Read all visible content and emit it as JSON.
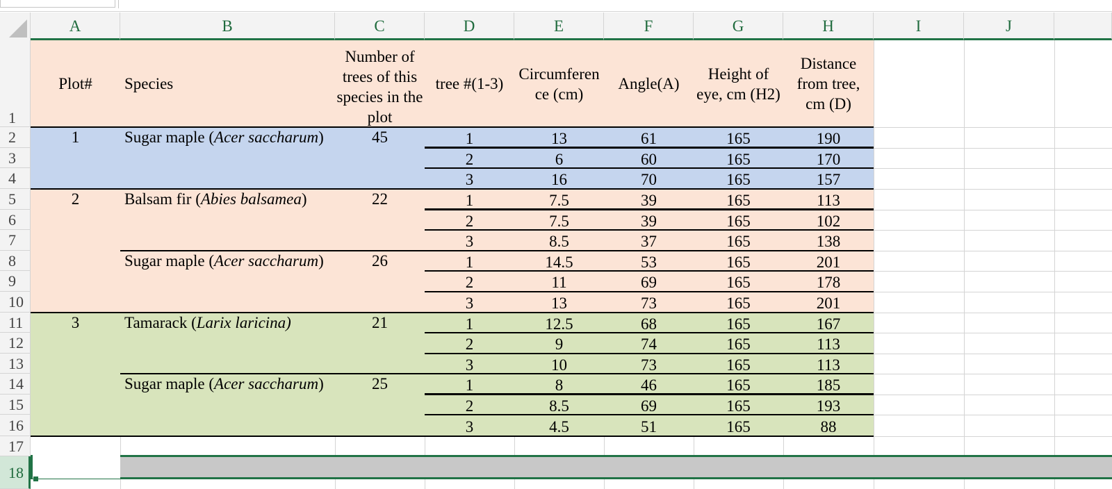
{
  "columns": [
    "A",
    "B",
    "C",
    "D",
    "E",
    "F",
    "G",
    "H",
    "I",
    "J"
  ],
  "rows": [
    "1",
    "2",
    "3",
    "4",
    "5",
    "6",
    "7",
    "8",
    "9",
    "10",
    "11",
    "12",
    "13",
    "14",
    "15",
    "16",
    "17",
    "18"
  ],
  "colors": {
    "peach": "#fce4d6",
    "blue": "#c5d5ee",
    "green": "#d8e4bc",
    "excel_green": "#217346"
  },
  "header": {
    "plot": "Plot#",
    "species": "Species",
    "number_of_trees": "Number of trees of this species in the plot",
    "tree_no": "tree #(1-3)",
    "circumference": "Circumferen ce (cm)",
    "angle": "Angle(A)",
    "height_eye": "Height of eye, cm (H2)",
    "distance": "Distance from tree, cm (D)"
  },
  "groups": [
    {
      "plot": "1",
      "common": "Sugar maple (",
      "latin": "Acer saccharum",
      "close": ")",
      "count": "45"
    },
    {
      "plot": "2",
      "common": "Balsam fir (",
      "latin": "Abies balsamea",
      "close": ")",
      "count": "22"
    },
    {
      "plot": "",
      "common": "Sugar maple (",
      "latin": "Acer saccharum",
      "close": ")",
      "count": "26"
    },
    {
      "plot": "3",
      "common": "Tamarack (",
      "latin": "Larix laricina)",
      "close": "",
      "count": "21"
    },
    {
      "plot": "",
      "common": "Sugar maple (",
      "latin": "Acer saccharum",
      "close": ")",
      "count": "25"
    }
  ],
  "data_rows": [
    [
      "1",
      "13",
      "61",
      "165",
      "190"
    ],
    [
      "2",
      "6",
      "60",
      "165",
      "170"
    ],
    [
      "3",
      "16",
      "70",
      "165",
      "157"
    ],
    [
      "1",
      "7.5",
      "39",
      "165",
      "113"
    ],
    [
      "2",
      "7.5",
      "39",
      "165",
      "102"
    ],
    [
      "3",
      "8.5",
      "37",
      "165",
      "138"
    ],
    [
      "1",
      "14.5",
      "53",
      "165",
      "201"
    ],
    [
      "2",
      "11",
      "69",
      "165",
      "178"
    ],
    [
      "3",
      "13",
      "73",
      "165",
      "201"
    ],
    [
      "1",
      "12.5",
      "68",
      "165",
      "167"
    ],
    [
      "2",
      "9",
      "74",
      "165",
      "113"
    ],
    [
      "3",
      "10",
      "73",
      "165",
      "113"
    ],
    [
      "1",
      "8",
      "46",
      "165",
      "185"
    ],
    [
      "2",
      "8.5",
      "69",
      "165",
      "193"
    ],
    [
      "3",
      "4.5",
      "51",
      "165",
      "88"
    ]
  ]
}
